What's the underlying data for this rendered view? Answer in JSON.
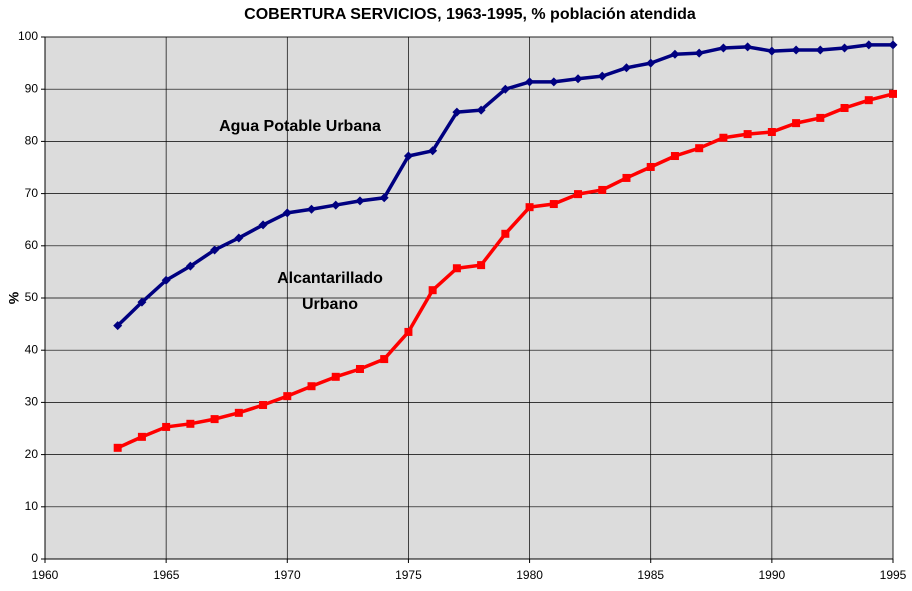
{
  "chart_data": {
    "type": "line",
    "title": "COBERTURA SERVICIOS, 1963-1995, % población  atendida",
    "y_label": "%",
    "x": [
      1963,
      1964,
      1965,
      1966,
      1967,
      1968,
      1969,
      1970,
      1971,
      1972,
      1973,
      1974,
      1975,
      1976,
      1977,
      1978,
      1979,
      1980,
      1981,
      1982,
      1983,
      1984,
      1985,
      1986,
      1987,
      1988,
      1989,
      1990,
      1991,
      1992,
      1993,
      1994,
      1995
    ],
    "series": [
      {
        "name": "Agua Potable Urbana",
        "color": "#000080",
        "marker": "diamond",
        "values": [
          44.7,
          49.2,
          53.4,
          56.1,
          59.2,
          61.5,
          64.0,
          66.3,
          67.0,
          67.8,
          68.6,
          69.2,
          77.2,
          78.2,
          85.6,
          86.0,
          90.0,
          91.4,
          91.4,
          92.0,
          92.5,
          94.1,
          95.0,
          96.7,
          96.9,
          97.9,
          98.1,
          97.3,
          97.5,
          97.5,
          97.9,
          98.5,
          98.5
        ]
      },
      {
        "name": "Alcantarillado Urbano",
        "color": "#ff0000",
        "marker": "square",
        "values": [
          21.3,
          23.4,
          25.3,
          25.9,
          26.8,
          28.0,
          29.5,
          31.2,
          33.1,
          34.9,
          36.4,
          38.3,
          43.5,
          51.5,
          55.7,
          56.3,
          62.3,
          67.4,
          68.0,
          69.9,
          70.7,
          73.0,
          75.1,
          77.2,
          78.7,
          80.7,
          81.4,
          81.8,
          83.5,
          84.5,
          86.4,
          87.9,
          89.1
        ]
      }
    ],
    "xlim": [
      1960,
      1995
    ],
    "xticks": [
      1960,
      1965,
      1970,
      1975,
      1980,
      1985,
      1990,
      1995
    ],
    "ylim": [
      0,
      100
    ],
    "yticks": [
      0,
      10,
      20,
      30,
      40,
      50,
      60,
      70,
      80,
      90,
      100
    ],
    "grid": true
  }
}
